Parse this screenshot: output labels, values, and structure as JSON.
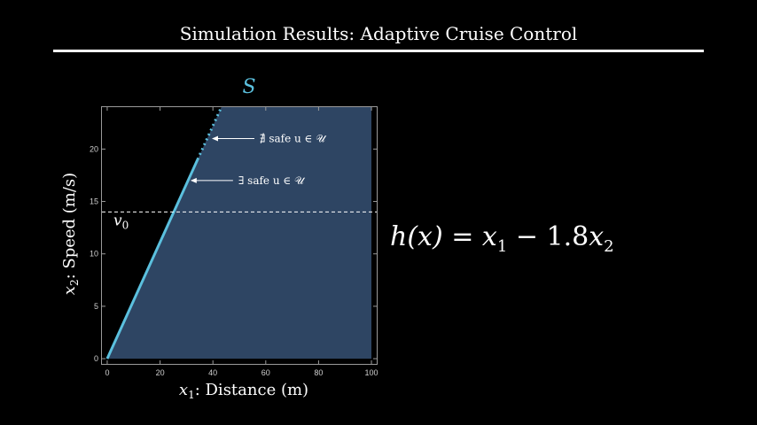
{
  "header": {
    "title": "Simulation Results: Adaptive Cruise Control"
  },
  "equation": {
    "lhs": "h(x)",
    "eq": "=",
    "t1": "x",
    "t1_sub": "1",
    "minus": "−",
    "coef": "1.8",
    "t2": "x",
    "t2_sub": "2"
  },
  "colors": {
    "background": "#000000",
    "safe_region": "#2e4563",
    "boundary": "#5bc0de",
    "text": "#ffffff"
  },
  "chart_data": {
    "type": "area",
    "region_label": "S",
    "xlabel_var": "x",
    "xlabel_sub": "1",
    "xlabel_text": ": Distance (m)",
    "ylabel_var": "x",
    "ylabel_sub": "2",
    "ylabel_text": ": Speed (m/s)",
    "xlim": [
      -2,
      102
    ],
    "ylim": [
      -0.5,
      24
    ],
    "xticks": [
      0,
      20,
      40,
      60,
      80,
      100
    ],
    "yticks": [
      0,
      5,
      10,
      15,
      20
    ],
    "region_x_max": 100,
    "boundary": {
      "solid": {
        "x": [
          0,
          34.2
        ],
        "y": [
          0,
          19
        ]
      },
      "dotted": {
        "x": [
          34.2,
          43.2
        ],
        "y": [
          19,
          24
        ]
      }
    },
    "reference_line": {
      "y": 14,
      "label": "v",
      "label_sub": "0"
    },
    "annotations": [
      {
        "text": "∄ safe u ∈ 𝒰",
        "target": [
          39.6,
          21
        ]
      },
      {
        "text": "∃ safe u ∈ 𝒰",
        "target": [
          31.5,
          17
        ]
      }
    ]
  }
}
